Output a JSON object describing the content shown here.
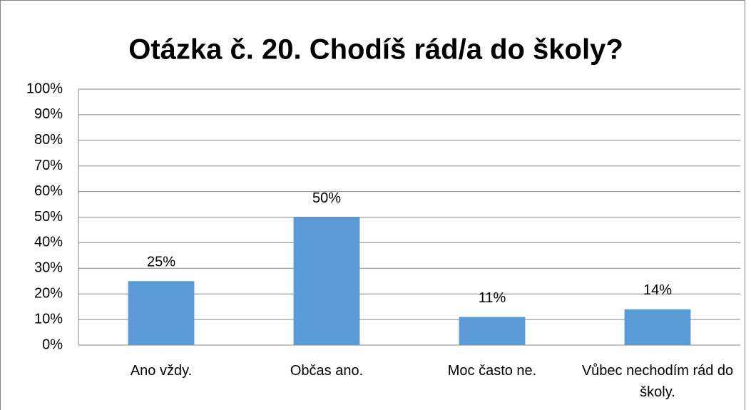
{
  "chart_data": {
    "type": "bar",
    "title": "Otázka č. 20. Chodíš rád/a do školy?",
    "categories": [
      "Ano vždy.",
      "Občas ano.",
      "Moc často ne.",
      "Vůbec nechodím rád do školy."
    ],
    "values": [
      25,
      50,
      11,
      14
    ],
    "value_labels": [
      "25%",
      "50%",
      "11%",
      "14%"
    ],
    "color": "#5b9bd5",
    "ylim": [
      0,
      100
    ],
    "yticks": [
      {
        "value": 0,
        "label": "0%"
      },
      {
        "value": 10,
        "label": "10%"
      },
      {
        "value": 20,
        "label": "20%"
      },
      {
        "value": 30,
        "label": "30%"
      },
      {
        "value": 40,
        "label": "40%"
      },
      {
        "value": 50,
        "label": "50%"
      },
      {
        "value": 60,
        "label": "60%"
      },
      {
        "value": 70,
        "label": "70%"
      },
      {
        "value": 80,
        "label": "80%"
      },
      {
        "value": 90,
        "label": "90%"
      },
      {
        "value": 100,
        "label": "100%"
      }
    ],
    "grid": true
  }
}
